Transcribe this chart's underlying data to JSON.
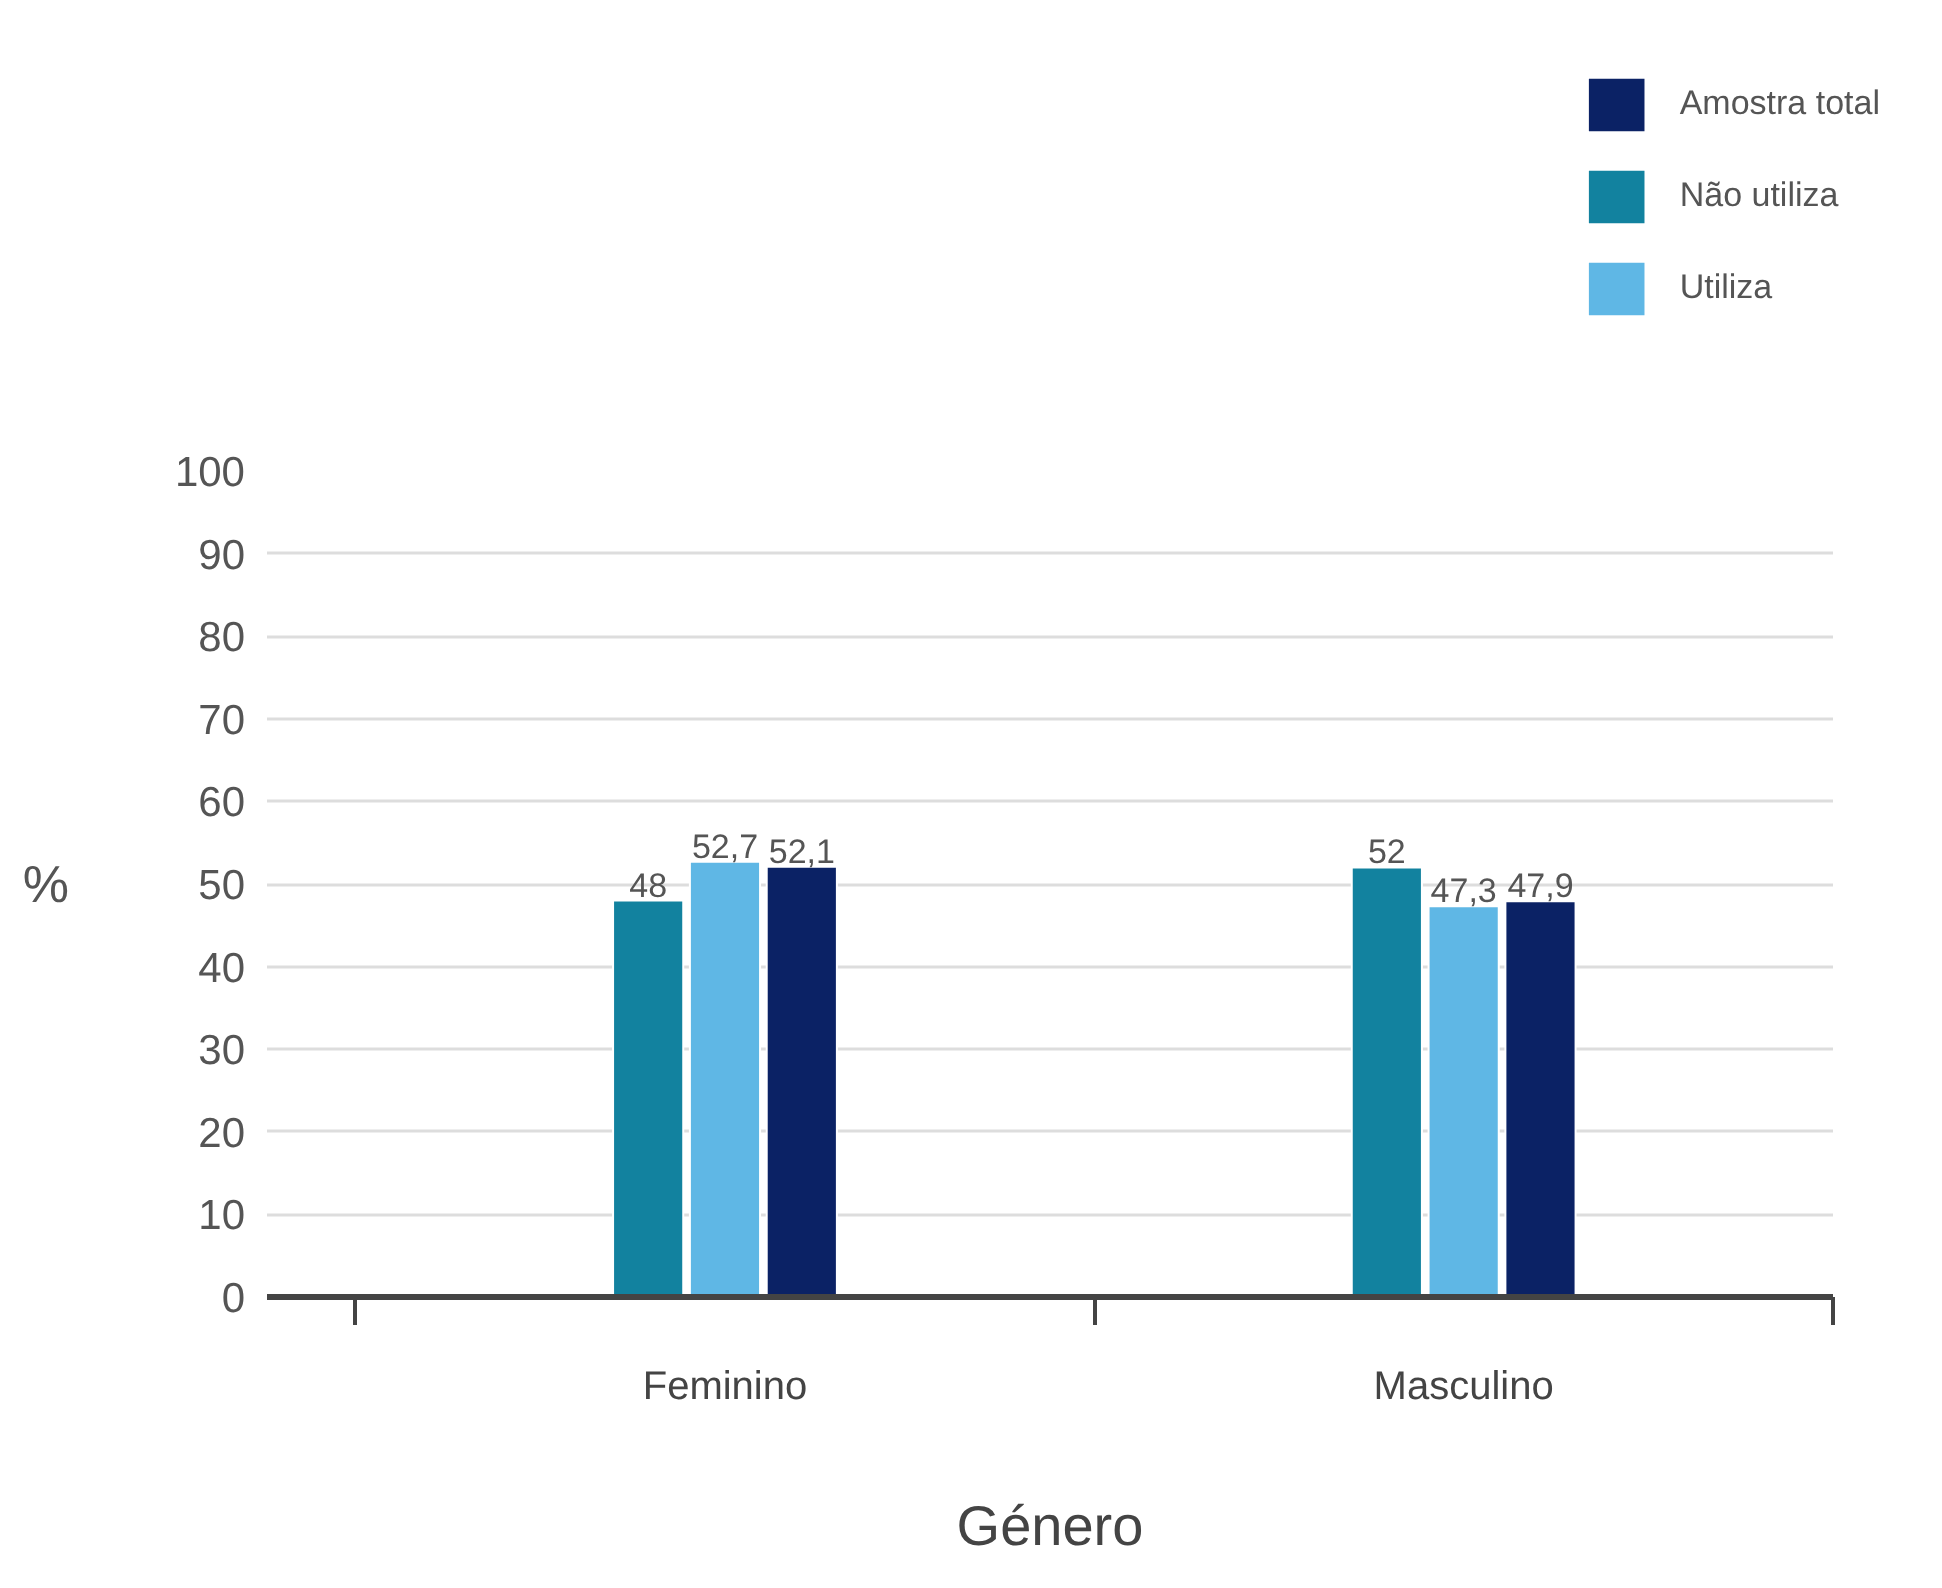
{
  "chart_data": {
    "type": "bar",
    "xlabel": "Género",
    "ylabel": "%",
    "categories": [
      "Feminino",
      "Masculino"
    ],
    "series": [
      {
        "name": "Não utiliza",
        "color": "#12829f",
        "values": [
          48,
          52
        ],
        "value_labels": [
          "48",
          "52"
        ]
      },
      {
        "name": "Utiliza",
        "color": "#5fb7e5",
        "values": [
          52.7,
          47.3
        ],
        "value_labels": [
          "52,7",
          "47,3"
        ]
      },
      {
        "name": "Amostra total",
        "color": "#0b2265",
        "values": [
          52.1,
          47.9
        ],
        "value_labels": [
          "52,1",
          "47,9"
        ]
      }
    ],
    "ylim": [
      0,
      100
    ],
    "yticks": [
      0,
      10,
      20,
      30,
      40,
      50,
      60,
      70,
      80,
      90,
      100
    ],
    "grid": "y",
    "legend": "top right"
  }
}
